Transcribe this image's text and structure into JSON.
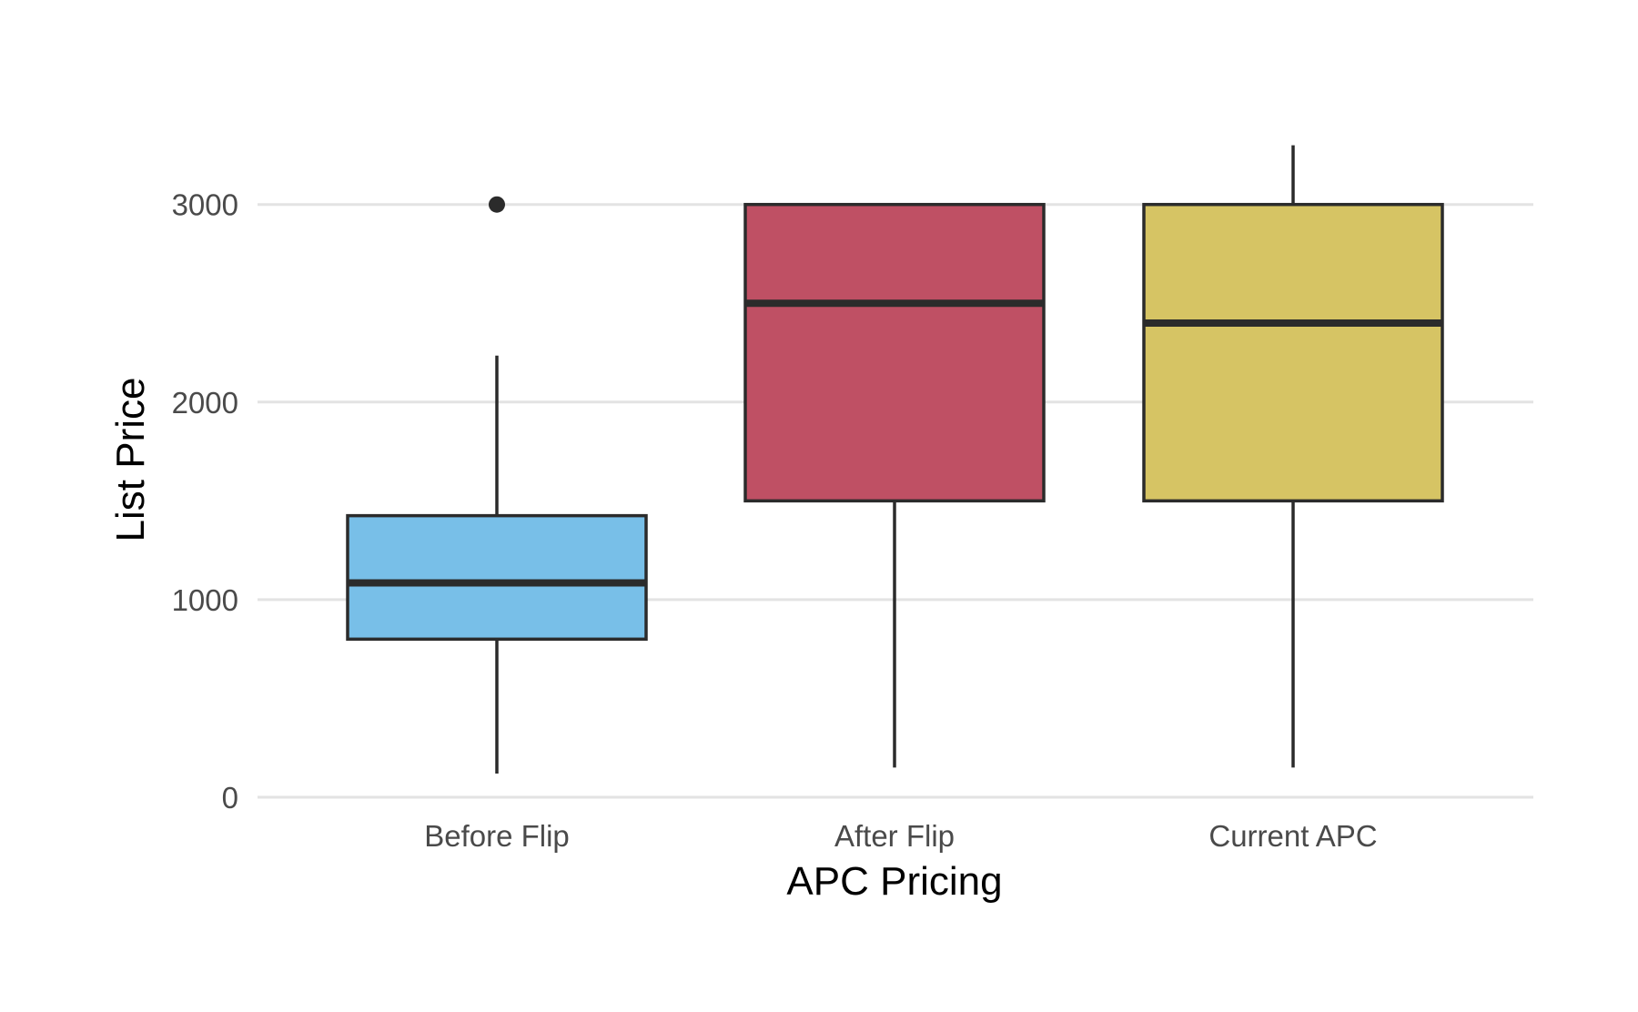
{
  "chart_data": {
    "type": "box",
    "xlabel": "APC Pricing",
    "ylabel": "List Price",
    "ylim": [
      0,
      3400
    ],
    "yticks": [
      0,
      1000,
      2000,
      3000
    ],
    "grid": {
      "horizontal": true,
      "vertical": false
    },
    "legend": "none",
    "categories": [
      "Before Flip",
      "After Flip",
      "Current APC"
    ],
    "boxes": [
      {
        "category": "Before Flip",
        "min": 120,
        "q1": 800,
        "median": 1085,
        "q3": 1425,
        "max": 2235,
        "outliers": [
          3000
        ],
        "color": "#78bfe8"
      },
      {
        "category": "After Flip",
        "min": 150,
        "q1": 1500,
        "median": 2500,
        "q3": 3000,
        "max": 3000,
        "outliers": [],
        "color": "#bf5064"
      },
      {
        "category": "Current APC",
        "min": 150,
        "q1": 1500,
        "median": 2400,
        "q3": 3000,
        "max": 3300,
        "outliers": [],
        "color": "#d6c464"
      }
    ]
  }
}
